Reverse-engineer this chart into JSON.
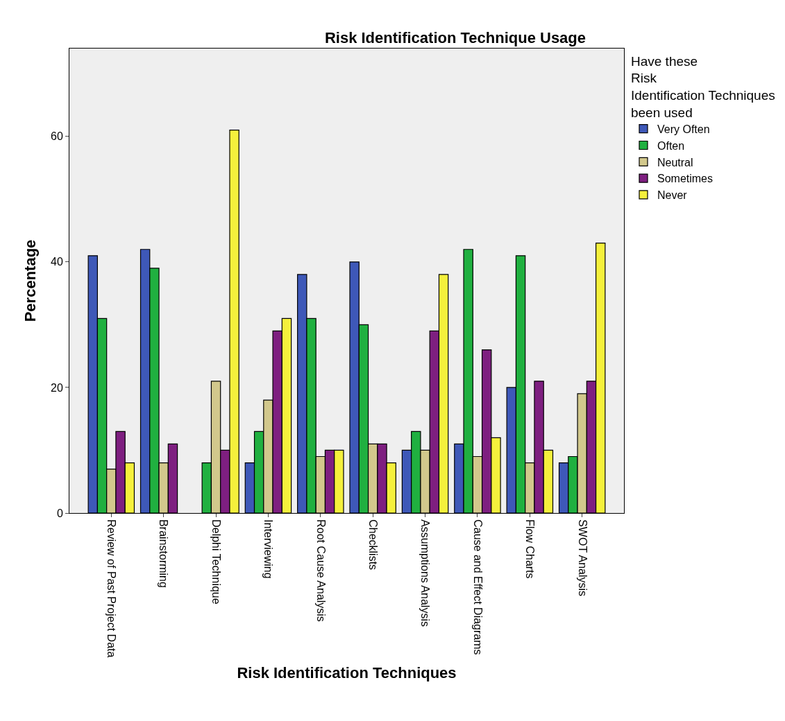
{
  "chart_data": {
    "type": "bar",
    "title": "Risk Identification Technique Usage",
    "xlabel": "Risk Identification Techniques",
    "ylabel": "Percentage",
    "legend_title": "Have these Risk Identification Techniques been used",
    "categories": [
      "Review of Past Project Data",
      "Brainstorming",
      "Delphi Technique",
      "Interviewing",
      "Root Cause Analysis",
      "Checklists",
      "Assumptions Analysis",
      "Cause and Effect Diagrams",
      "Flow Charts",
      "SWOT Analysis"
    ],
    "series": [
      {
        "name": "Very Often",
        "color": "#3e58b8",
        "values": [
          41,
          42,
          null,
          8,
          38,
          40,
          10,
          11,
          20,
          8
        ]
      },
      {
        "name": "Often",
        "color": "#20b040",
        "values": [
          31,
          39,
          8,
          13,
          31,
          30,
          13,
          42,
          41,
          9
        ]
      },
      {
        "name": "Neutral",
        "color": "#d2c88c",
        "values": [
          7,
          8,
          21,
          18,
          9,
          11,
          10,
          9,
          8,
          19
        ]
      },
      {
        "name": "Sometimes",
        "color": "#7e1f80",
        "values": [
          13,
          11,
          10,
          29,
          10,
          11,
          29,
          26,
          21,
          21
        ]
      },
      {
        "name": "Never",
        "color": "#f5f03c",
        "values": [
          8,
          null,
          61,
          31,
          10,
          8,
          38,
          12,
          10,
          43
        ]
      }
    ],
    "ylim": [
      0,
      74
    ],
    "yticks": [
      0,
      20,
      40,
      60
    ],
    "grid": false,
    "legend": "right"
  }
}
